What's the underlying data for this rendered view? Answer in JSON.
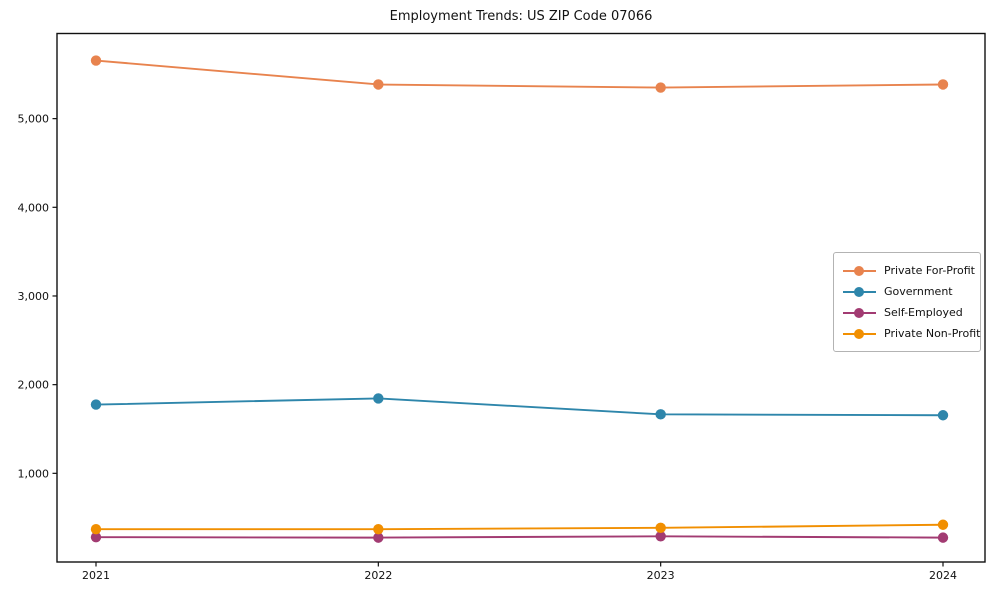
{
  "chart_data": {
    "type": "line",
    "title": "Employment Trends: US ZIP Code 07066",
    "xlabel": "",
    "ylabel": "",
    "x": [
      2021,
      2022,
      2023,
      2024
    ],
    "xtick_labels": [
      "2021",
      "2022",
      "2023",
      "2024"
    ],
    "yticks": [
      1000,
      2000,
      3000,
      4000,
      5000
    ],
    "ytick_labels": [
      "1,000",
      "2,000",
      "3,000",
      "4,000",
      "5,000"
    ],
    "ylim": [
      0,
      5960
    ],
    "grid": false,
    "legend_position": "center-right-inside",
    "marker": "circle",
    "series": [
      {
        "name": "Private For-Profit",
        "color": "#E8834E",
        "values": [
          5655,
          5385,
          5350,
          5385
        ]
      },
      {
        "name": "Government",
        "color": "#2E86AB",
        "values": [
          1775,
          1845,
          1665,
          1655
        ]
      },
      {
        "name": "Self-Employed",
        "color": "#A23B72",
        "values": [
          280,
          275,
          290,
          275
        ]
      },
      {
        "name": "Private Non-Profit",
        "color": "#F18F01",
        "values": [
          370,
          370,
          385,
          420
        ]
      }
    ]
  }
}
